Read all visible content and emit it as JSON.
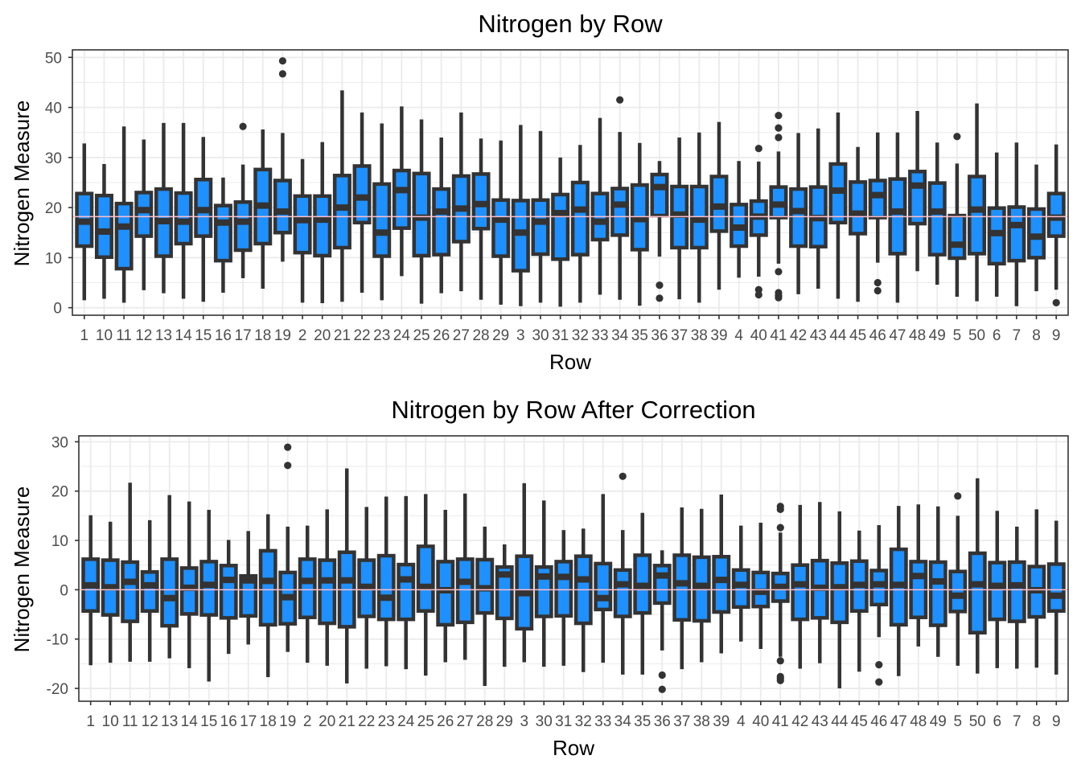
{
  "colors": {
    "box_fill": "#1e90ff",
    "box_stroke": "#333333",
    "ref_line": "#ffc0cb",
    "grid": "#ebebeb",
    "panel_border": "#333333"
  },
  "chart_data": [
    {
      "type": "boxplot",
      "title": "Nitrogen by Row",
      "xlabel": "Row",
      "ylabel": "Nitrogen Measure",
      "ylim": [
        -1.5,
        51.5
      ],
      "yticks": [
        0,
        10,
        20,
        30,
        40,
        50
      ],
      "yticklabels": [
        "0",
        "10",
        "20",
        "30",
        "40",
        "50"
      ],
      "grid": true,
      "reference_line": 18.2,
      "categories": [
        "1",
        "10",
        "11",
        "12",
        "13",
        "14",
        "15",
        "16",
        "17",
        "18",
        "19",
        "2",
        "20",
        "21",
        "22",
        "23",
        "24",
        "25",
        "26",
        "27",
        "28",
        "29",
        "3",
        "30",
        "31",
        "32",
        "33",
        "34",
        "35",
        "36",
        "37",
        "38",
        "39",
        "4",
        "40",
        "41",
        "42",
        "43",
        "44",
        "45",
        "46",
        "47",
        "48",
        "49",
        "5",
        "50",
        "6",
        "7",
        "8",
        "9"
      ],
      "boxes": [
        {
          "min": 1.5,
          "q1": 12.3,
          "median": 17.2,
          "q3": 22.8,
          "max": 32.8,
          "outliers": []
        },
        {
          "min": 1.8,
          "q1": 10.1,
          "median": 15.2,
          "q3": 22.4,
          "max": 28.7,
          "outliers": []
        },
        {
          "min": 1.0,
          "q1": 7.8,
          "median": 16.2,
          "q3": 20.8,
          "max": 36.2,
          "outliers": []
        },
        {
          "min": 3.5,
          "q1": 14.3,
          "median": 19.5,
          "q3": 23.0,
          "max": 33.6,
          "outliers": []
        },
        {
          "min": 2.9,
          "q1": 10.3,
          "median": 17.3,
          "q3": 23.7,
          "max": 36.9,
          "outliers": []
        },
        {
          "min": 1.8,
          "q1": 12.8,
          "median": 17.2,
          "q3": 22.9,
          "max": 36.9,
          "outliers": []
        },
        {
          "min": 1.2,
          "q1": 14.3,
          "median": 19.5,
          "q3": 25.6,
          "max": 34.1,
          "outliers": []
        },
        {
          "min": 3.0,
          "q1": 9.4,
          "median": 17.0,
          "q3": 20.4,
          "max": 26.0,
          "outliers": []
        },
        {
          "min": 5.9,
          "q1": 11.5,
          "median": 17.2,
          "q3": 21.1,
          "max": 28.6,
          "outliers": [
            36.2
          ]
        },
        {
          "min": 3.8,
          "q1": 12.8,
          "median": 20.4,
          "q3": 27.6,
          "max": 35.6,
          "outliers": []
        },
        {
          "min": 9.2,
          "q1": 15.0,
          "median": 19.2,
          "q3": 25.4,
          "max": 34.9,
          "outliers": [
            46.7,
            49.3
          ]
        },
        {
          "min": 1.0,
          "q1": 11.0,
          "median": 17.5,
          "q3": 22.3,
          "max": 29.7,
          "outliers": []
        },
        {
          "min": 0.9,
          "q1": 10.4,
          "median": 17.6,
          "q3": 22.3,
          "max": 33.1,
          "outliers": []
        },
        {
          "min": 1.2,
          "q1": 12.0,
          "median": 20.0,
          "q3": 26.4,
          "max": 43.4,
          "outliers": []
        },
        {
          "min": 3.0,
          "q1": 17.0,
          "median": 22.0,
          "q3": 28.3,
          "max": 39.0,
          "outliers": []
        },
        {
          "min": 1.5,
          "q1": 10.3,
          "median": 15.0,
          "q3": 24.7,
          "max": 36.8,
          "outliers": []
        },
        {
          "min": 6.3,
          "q1": 15.9,
          "median": 23.5,
          "q3": 27.4,
          "max": 40.2,
          "outliers": []
        },
        {
          "min": 0.8,
          "q1": 10.4,
          "median": 18.0,
          "q3": 26.8,
          "max": 37.6,
          "outliers": []
        },
        {
          "min": 2.9,
          "q1": 10.6,
          "median": 19.2,
          "q3": 23.7,
          "max": 34.0,
          "outliers": []
        },
        {
          "min": 3.3,
          "q1": 13.2,
          "median": 19.8,
          "q3": 26.3,
          "max": 39.0,
          "outliers": []
        },
        {
          "min": 1.6,
          "q1": 15.8,
          "median": 20.7,
          "q3": 26.7,
          "max": 33.8,
          "outliers": []
        },
        {
          "min": 0.6,
          "q1": 10.3,
          "median": 17.6,
          "q3": 21.5,
          "max": 33.4,
          "outliers": []
        },
        {
          "min": 0.3,
          "q1": 7.4,
          "median": 15.0,
          "q3": 21.4,
          "max": 36.5,
          "outliers": []
        },
        {
          "min": 1.0,
          "q1": 10.7,
          "median": 17.2,
          "q3": 21.5,
          "max": 35.3,
          "outliers": []
        },
        {
          "min": 0.2,
          "q1": 9.7,
          "median": 18.9,
          "q3": 22.6,
          "max": 30.0,
          "outliers": []
        },
        {
          "min": 1.0,
          "q1": 10.6,
          "median": 19.6,
          "q3": 25.0,
          "max": 32.5,
          "outliers": []
        },
        {
          "min": 2.6,
          "q1": 13.6,
          "median": 17.2,
          "q3": 22.8,
          "max": 37.9,
          "outliers": []
        },
        {
          "min": 1.6,
          "q1": 14.5,
          "median": 20.6,
          "q3": 23.8,
          "max": 35.1,
          "outliers": [
            41.5
          ]
        },
        {
          "min": 0.4,
          "q1": 11.6,
          "median": 17.7,
          "q3": 24.5,
          "max": 32.9,
          "outliers": []
        },
        {
          "min": 10.2,
          "q1": 18.4,
          "median": 24.1,
          "q3": 26.6,
          "max": 29.3,
          "outliers": [
            1.9,
            4.5
          ]
        },
        {
          "min": 1.7,
          "q1": 12.0,
          "median": 18.6,
          "q3": 24.2,
          "max": 34.0,
          "outliers": []
        },
        {
          "min": 1.0,
          "q1": 12.0,
          "median": 17.6,
          "q3": 24.2,
          "max": 35.0,
          "outliers": []
        },
        {
          "min": 3.6,
          "q1": 15.3,
          "median": 20.2,
          "q3": 26.2,
          "max": 37.1,
          "outliers": []
        },
        {
          "min": 6.0,
          "q1": 12.3,
          "median": 16.0,
          "q3": 20.6,
          "max": 29.3,
          "outliers": []
        },
        {
          "min": 6.2,
          "q1": 14.5,
          "median": 18.2,
          "q3": 21.3,
          "max": 29.2,
          "outliers": [
            31.8,
            3.6,
            2.6
          ]
        },
        {
          "min": 8.8,
          "q1": 18.0,
          "median": 20.6,
          "q3": 24.1,
          "max": 31.2,
          "outliers": [
            38.4,
            35.9,
            34.0,
            7.2,
            3.0,
            2.4,
            2.0
          ]
        },
        {
          "min": 2.7,
          "q1": 12.3,
          "median": 19.3,
          "q3": 23.7,
          "max": 34.9,
          "outliers": []
        },
        {
          "min": 3.8,
          "q1": 12.2,
          "median": 17.9,
          "q3": 24.1,
          "max": 35.8,
          "outliers": []
        },
        {
          "min": 1.8,
          "q1": 17.0,
          "median": 23.4,
          "q3": 28.7,
          "max": 39.0,
          "outliers": []
        },
        {
          "min": 1.2,
          "q1": 14.8,
          "median": 18.8,
          "q3": 25.1,
          "max": 32.1,
          "outliers": []
        },
        {
          "min": 9.0,
          "q1": 18.0,
          "median": 22.5,
          "q3": 25.4,
          "max": 35.0,
          "outliers": [
            5.0,
            3.4
          ]
        },
        {
          "min": 1.0,
          "q1": 10.8,
          "median": 19.2,
          "q3": 25.7,
          "max": 35.0,
          "outliers": []
        },
        {
          "min": 7.3,
          "q1": 16.8,
          "median": 24.4,
          "q3": 27.2,
          "max": 39.3,
          "outliers": []
        },
        {
          "min": 4.6,
          "q1": 10.6,
          "median": 19.2,
          "q3": 24.9,
          "max": 33.0,
          "outliers": []
        },
        {
          "min": 2.2,
          "q1": 9.9,
          "median": 12.6,
          "q3": 18.4,
          "max": 28.8,
          "outliers": [
            34.2
          ]
        },
        {
          "min": 1.3,
          "q1": 10.8,
          "median": 19.6,
          "q3": 26.2,
          "max": 40.8,
          "outliers": []
        },
        {
          "min": 2.2,
          "q1": 8.8,
          "median": 14.9,
          "q3": 19.9,
          "max": 31.0,
          "outliers": []
        },
        {
          "min": 0.3,
          "q1": 9.4,
          "median": 16.5,
          "q3": 20.1,
          "max": 33.0,
          "outliers": []
        },
        {
          "min": 3.3,
          "q1": 10.0,
          "median": 14.2,
          "q3": 19.7,
          "max": 28.6,
          "outliers": []
        },
        {
          "min": 3.6,
          "q1": 14.3,
          "median": 18.0,
          "q3": 22.8,
          "max": 32.6,
          "outliers": [
            1.0
          ]
        }
      ]
    },
    {
      "type": "boxplot",
      "title": "Nitrogen by Row After Correction",
      "xlabel": "Row",
      "ylabel": "Nitrogen Measure",
      "ylim": [
        -22.6,
        31.2
      ],
      "yticks": [
        -20,
        -10,
        0,
        10,
        20,
        30
      ],
      "yticklabels": [
        "-20",
        "-10",
        "0",
        "10",
        "20",
        "30"
      ],
      "grid": true,
      "reference_line": 0,
      "categories": [
        "1",
        "10",
        "11",
        "12",
        "13",
        "14",
        "15",
        "16",
        "17",
        "18",
        "19",
        "2",
        "20",
        "21",
        "22",
        "23",
        "24",
        "25",
        "26",
        "27",
        "28",
        "29",
        "3",
        "30",
        "31",
        "32",
        "33",
        "34",
        "35",
        "36",
        "37",
        "38",
        "39",
        "4",
        "40",
        "41",
        "42",
        "43",
        "44",
        "45",
        "46",
        "47",
        "48",
        "49",
        "5",
        "50",
        "6",
        "7",
        "8",
        "9"
      ],
      "boxes": [
        {
          "min": -15.3,
          "q1": -4.3,
          "median": 0.9,
          "q3": 6.2,
          "max": 15.1,
          "outliers": []
        },
        {
          "min": -14.8,
          "q1": -5.1,
          "median": 0.5,
          "q3": 6.0,
          "max": 13.8,
          "outliers": []
        },
        {
          "min": -14.6,
          "q1": -6.4,
          "median": 1.6,
          "q3": 5.6,
          "max": 21.7,
          "outliers": []
        },
        {
          "min": -14.6,
          "q1": -4.3,
          "median": 0.9,
          "q3": 3.6,
          "max": 14.1,
          "outliers": []
        },
        {
          "min": -13.9,
          "q1": -7.3,
          "median": -1.7,
          "q3": 6.2,
          "max": 19.2,
          "outliers": []
        },
        {
          "min": -15.9,
          "q1": -4.9,
          "median": 0.4,
          "q3": 4.4,
          "max": 17.9,
          "outliers": []
        },
        {
          "min": -18.6,
          "q1": -5.1,
          "median": 1.0,
          "q3": 5.7,
          "max": 16.2,
          "outliers": []
        },
        {
          "min": -13.0,
          "q1": -5.7,
          "median": 2.0,
          "q3": 4.9,
          "max": 10.1,
          "outliers": []
        },
        {
          "min": -11.1,
          "q1": -5.3,
          "median": 1.9,
          "q3": 2.8,
          "max": 11.9,
          "outliers": []
        },
        {
          "min": -17.7,
          "q1": -7.1,
          "median": 1.8,
          "q3": 7.9,
          "max": 15.3,
          "outliers": []
        },
        {
          "min": -12.6,
          "q1": -6.9,
          "median": -1.5,
          "q3": 3.5,
          "max": 12.8,
          "outliers": [
            25.2,
            28.9
          ]
        },
        {
          "min": -14.8,
          "q1": -5.6,
          "median": 1.8,
          "q3": 6.2,
          "max": 13.0,
          "outliers": []
        },
        {
          "min": -15.4,
          "q1": -6.8,
          "median": 1.9,
          "q3": 6.0,
          "max": 16.3,
          "outliers": []
        },
        {
          "min": -19.0,
          "q1": -7.5,
          "median": 1.9,
          "q3": 7.6,
          "max": 24.6,
          "outliers": []
        },
        {
          "min": -16.0,
          "q1": -5.4,
          "median": 0.6,
          "q3": 6.0,
          "max": 16.8,
          "outliers": []
        },
        {
          "min": -15.5,
          "q1": -6.0,
          "median": -1.6,
          "q3": 6.9,
          "max": 18.9,
          "outliers": []
        },
        {
          "min": -16.1,
          "q1": -6.0,
          "median": 2.1,
          "q3": 5.1,
          "max": 19.0,
          "outliers": []
        },
        {
          "min": -17.4,
          "q1": -4.3,
          "median": 0.6,
          "q3": 8.8,
          "max": 19.4,
          "outliers": []
        },
        {
          "min": -14.7,
          "q1": -7.1,
          "median": -0.1,
          "q3": 5.7,
          "max": 16.2,
          "outliers": []
        },
        {
          "min": -14.2,
          "q1": -6.6,
          "median": 1.6,
          "q3": 6.2,
          "max": 19.5,
          "outliers": []
        },
        {
          "min": -19.5,
          "q1": -4.7,
          "median": 0.3,
          "q3": 6.1,
          "max": 12.8,
          "outliers": []
        },
        {
          "min": -15.6,
          "q1": -5.8,
          "median": 3.1,
          "q3": 4.6,
          "max": 9.2,
          "outliers": []
        },
        {
          "min": -14.7,
          "q1": -7.9,
          "median": -0.7,
          "q3": 6.8,
          "max": 21.6,
          "outliers": []
        },
        {
          "min": -15.6,
          "q1": -5.4,
          "median": 2.7,
          "q3": 4.6,
          "max": 18.1,
          "outliers": []
        },
        {
          "min": -15.4,
          "q1": -5.3,
          "median": 2.6,
          "q3": 5.7,
          "max": 12.1,
          "outliers": []
        },
        {
          "min": -16.7,
          "q1": -6.8,
          "median": 2.1,
          "q3": 6.8,
          "max": 12.4,
          "outliers": []
        },
        {
          "min": -14.8,
          "q1": -4.0,
          "median": -1.7,
          "q3": 5.3,
          "max": 19.4,
          "outliers": []
        },
        {
          "min": -17.2,
          "q1": -5.4,
          "median": 1.1,
          "q3": 4.0,
          "max": 12.1,
          "outliers": [
            23.0
          ]
        },
        {
          "min": -17.2,
          "q1": -4.7,
          "median": 0.8,
          "q3": 7.0,
          "max": 15.6,
          "outliers": []
        },
        {
          "min": -12.3,
          "q1": -2.7,
          "median": 2.9,
          "q3": 4.9,
          "max": 8.0,
          "outliers": [
            -17.3,
            -20.2
          ]
        },
        {
          "min": -16.1,
          "q1": -6.1,
          "median": 1.3,
          "q3": 7.0,
          "max": 16.7,
          "outliers": []
        },
        {
          "min": -14.7,
          "q1": -6.3,
          "median": 0.8,
          "q3": 6.6,
          "max": 16.4,
          "outliers": []
        },
        {
          "min": -12.9,
          "q1": -4.5,
          "median": 2.0,
          "q3": 6.7,
          "max": 19.3,
          "outliers": []
        },
        {
          "min": -10.5,
          "q1": -3.5,
          "median": 1.0,
          "q3": 4.0,
          "max": 13.0,
          "outliers": []
        },
        {
          "min": -12.0,
          "q1": -3.4,
          "median": -0.4,
          "q3": 3.5,
          "max": 13.6,
          "outliers": []
        },
        {
          "min": -13.6,
          "q1": -2.3,
          "median": 0.6,
          "q3": 3.3,
          "max": 11.6,
          "outliers": [
            16.9,
            16.3,
            12.6,
            -14.4,
            -17.6,
            -18.0,
            -18.4
          ]
        },
        {
          "min": -16.0,
          "q1": -6.0,
          "median": 1.1,
          "q3": 5.0,
          "max": 17.2,
          "outliers": []
        },
        {
          "min": -14.9,
          "q1": -5.7,
          "median": 0.4,
          "q3": 5.9,
          "max": 17.8,
          "outliers": []
        },
        {
          "min": -20.0,
          "q1": -6.6,
          "median": 0.5,
          "q3": 5.4,
          "max": 15.9,
          "outliers": []
        },
        {
          "min": -16.6,
          "q1": -4.3,
          "median": 1.0,
          "q3": 5.8,
          "max": 12.0,
          "outliers": []
        },
        {
          "min": -9.6,
          "q1": -3.0,
          "median": 1.1,
          "q3": 3.9,
          "max": 13.1,
          "outliers": [
            -15.2,
            -18.7
          ]
        },
        {
          "min": -17.5,
          "q1": -7.1,
          "median": 1.0,
          "q3": 8.2,
          "max": 17.0,
          "outliers": []
        },
        {
          "min": -11.5,
          "q1": -5.6,
          "median": 2.8,
          "q3": 5.7,
          "max": 17.3,
          "outliers": []
        },
        {
          "min": -13.6,
          "q1": -7.2,
          "median": 1.7,
          "q3": 5.6,
          "max": 16.9,
          "outliers": []
        },
        {
          "min": -15.4,
          "q1": -4.4,
          "median": -1.2,
          "q3": 3.7,
          "max": 15.0,
          "outliers": [
            19.0
          ]
        },
        {
          "min": -17.0,
          "q1": -8.7,
          "median": 1.1,
          "q3": 7.4,
          "max": 22.6,
          "outliers": []
        },
        {
          "min": -15.9,
          "q1": -6.0,
          "median": 0.8,
          "q3": 5.5,
          "max": 16.0,
          "outliers": []
        },
        {
          "min": -16.0,
          "q1": -6.4,
          "median": 0.9,
          "q3": 5.6,
          "max": 12.8,
          "outliers": []
        },
        {
          "min": -15.8,
          "q1": -5.5,
          "median": -0.1,
          "q3": 4.7,
          "max": 16.3,
          "outliers": []
        },
        {
          "min": -17.2,
          "q1": -4.3,
          "median": -1.2,
          "q3": 5.2,
          "max": 14.0,
          "outliers": []
        }
      ]
    }
  ]
}
